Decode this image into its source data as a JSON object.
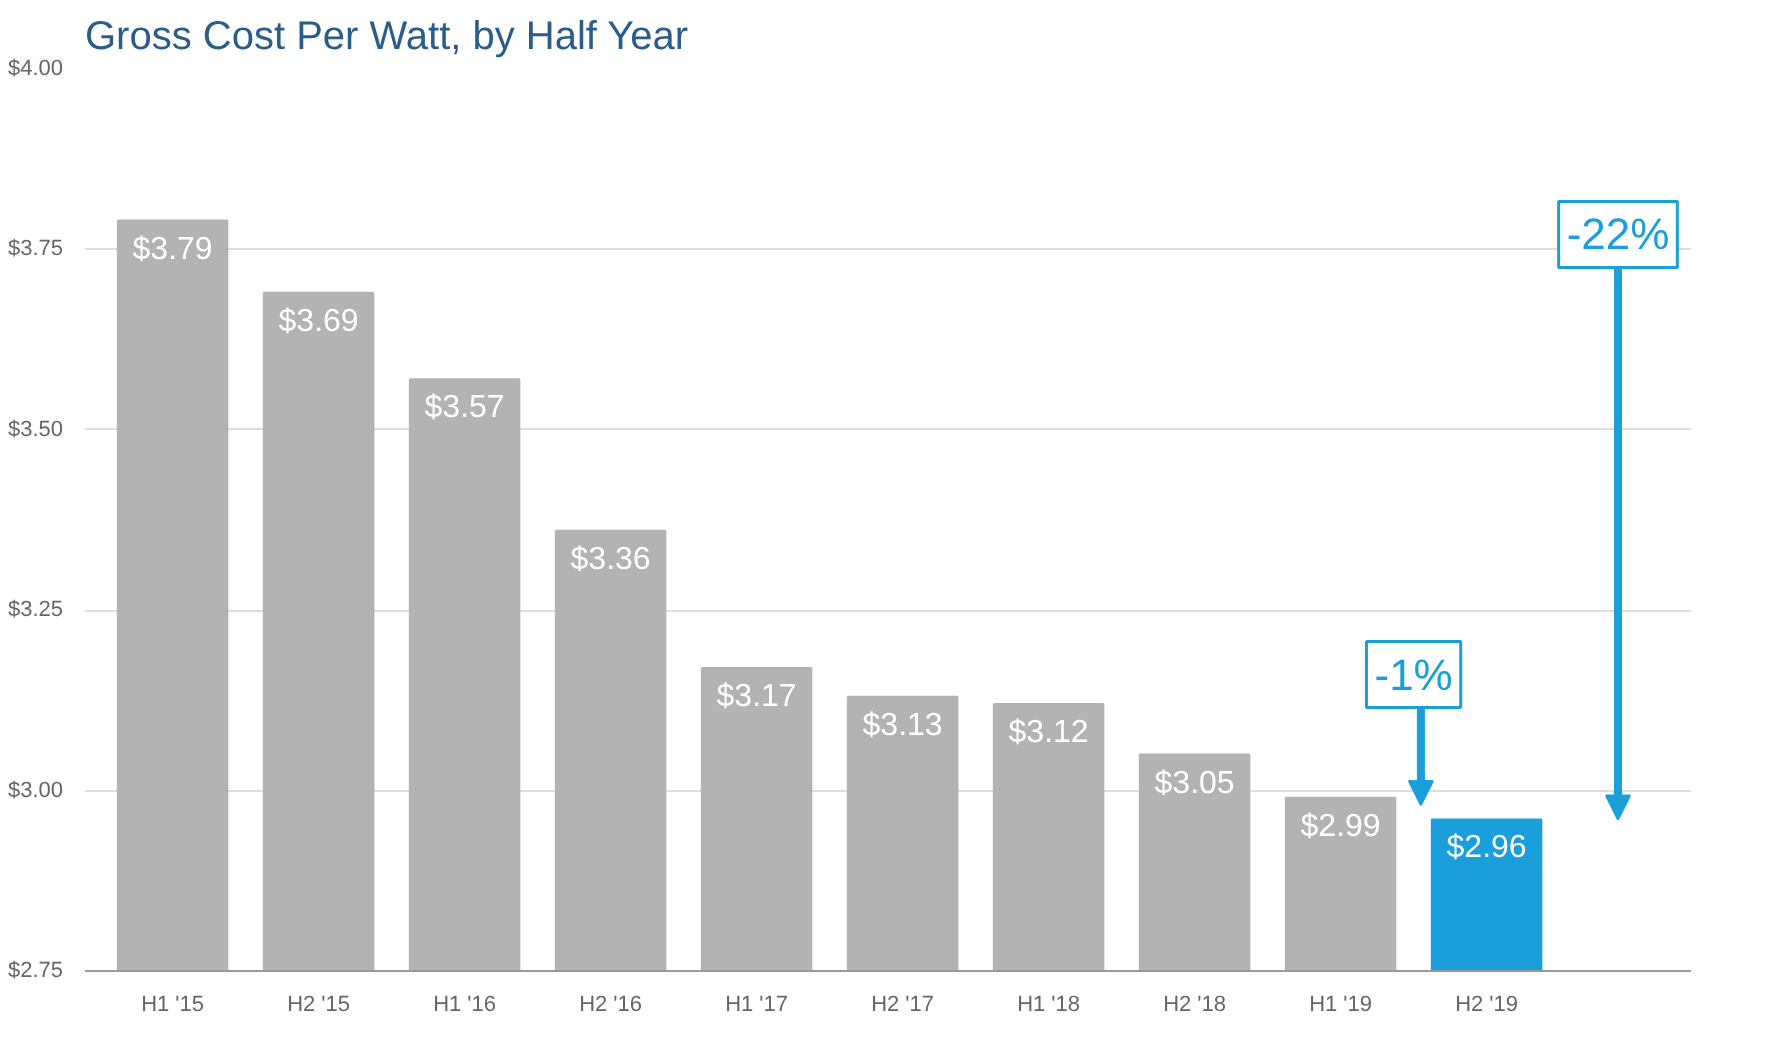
{
  "chart_data": {
    "type": "bar",
    "title": "Gross Cost Per Watt, by Half Year",
    "categories": [
      "H1 '15",
      "H2 '15",
      "H1 '16",
      "H2 '16",
      "H1 '17",
      "H2 '17",
      "H1 '18",
      "H2 '18",
      "H1 '19",
      "H2 '19"
    ],
    "values": [
      3.79,
      3.69,
      3.57,
      3.36,
      3.17,
      3.13,
      3.12,
      3.05,
      2.99,
      2.96
    ],
    "value_labels": [
      "$3.79",
      "$3.69",
      "$3.57",
      "$3.36",
      "$3.17",
      "$3.13",
      "$3.12",
      "$3.05",
      "$2.99",
      "$2.96"
    ],
    "colors": [
      "#b3b3b3",
      "#b3b3b3",
      "#b3b3b3",
      "#b3b3b3",
      "#b3b3b3",
      "#b3b3b3",
      "#b3b3b3",
      "#b3b3b3",
      "#b3b3b3",
      "#1a9fdb"
    ],
    "ylim": [
      2.75,
      4.0
    ],
    "yticks": [
      {
        "value": 2.75,
        "label": "$2.75"
      },
      {
        "value": 3.0,
        "label": "$3.00"
      },
      {
        "value": 3.25,
        "label": "$3.25"
      },
      {
        "value": 3.5,
        "label": "$3.50"
      },
      {
        "value": 3.75,
        "label": "$3.75"
      },
      {
        "value": 4.0,
        "label": "$4.00"
      }
    ],
    "grid": "y",
    "annotations": [
      "-1%",
      "-22%"
    ]
  }
}
